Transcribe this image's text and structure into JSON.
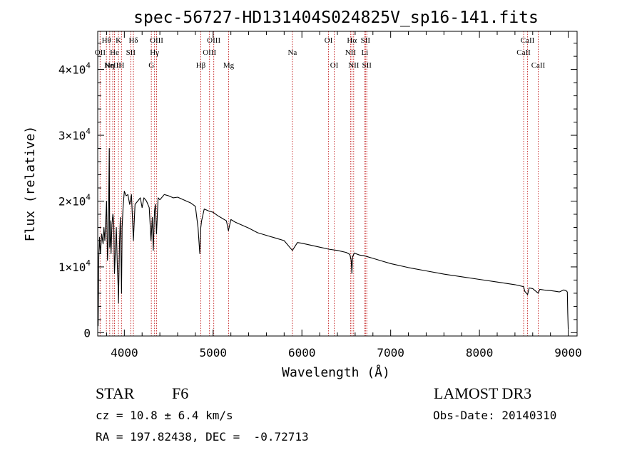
{
  "chart_data": {
    "type": "line",
    "title": "spec-56727-HD131404S024825V_sp16-141.fits",
    "xlabel": "Wavelength (Å)",
    "ylabel": "Flux (relative)",
    "xlim": [
      3700,
      9100
    ],
    "ylim": [
      -500,
      45800
    ],
    "x_ticks": [
      4000,
      5000,
      6000,
      7000,
      8000,
      9000
    ],
    "x_tick_labels": [
      "4000",
      "5000",
      "6000",
      "7000",
      "8000",
      "9000"
    ],
    "y_ticks": [
      0,
      10000,
      20000,
      30000,
      40000
    ],
    "y_tick_labels": [
      {
        "mant": "0",
        "exp": ""
      },
      {
        "mant": "1×10",
        "exp": "4"
      },
      {
        "mant": "2×10",
        "exp": "4"
      },
      {
        "mant": "3×10",
        "exp": "4"
      },
      {
        "mant": "4×10",
        "exp": "4"
      }
    ],
    "line_color": "#000000",
    "marker_color": "#c83232",
    "series": [
      {
        "name": "flux",
        "x": [
          3705,
          3712,
          3720,
          3730,
          3745,
          3760,
          3770,
          3780,
          3790,
          3800,
          3810,
          3820,
          3830,
          3835,
          3840,
          3845,
          3850,
          3860,
          3870,
          3880,
          3889,
          3900,
          3910,
          3920,
          3930,
          3934,
          3945,
          3955,
          3960,
          3968,
          3975,
          3985,
          4000,
          4020,
          4040,
          4060,
          4080,
          4102,
          4120,
          4150,
          4180,
          4200,
          4220,
          4250,
          4280,
          4300,
          4315,
          4326,
          4340,
          4350,
          4362,
          4380,
          4400,
          4450,
          4500,
          4550,
          4600,
          4650,
          4700,
          4750,
          4800,
          4830,
          4850,
          4861,
          4870,
          4900,
          4950,
          5000,
          5050,
          5100,
          5150,
          5172,
          5183,
          5200,
          5250,
          5300,
          5400,
          5500,
          5600,
          5700,
          5800,
          5893,
          5950,
          6000,
          6100,
          6200,
          6300,
          6400,
          6500,
          6540,
          6555,
          6563,
          6570,
          6590,
          6650,
          6700,
          6800,
          6900,
          7000,
          7200,
          7400,
          7600,
          7800,
          8000,
          8200,
          8400,
          8498,
          8510,
          8542,
          8560,
          8600,
          8662,
          8680,
          8750,
          8800,
          8850,
          8900,
          8950,
          8975,
          8990,
          8995,
          9000
        ],
        "values": [
          1000,
          11500,
          14500,
          12000,
          15000,
          13500,
          16000,
          14000,
          17000,
          20000,
          11000,
          15000,
          28000,
          13000,
          17000,
          14500,
          12000,
          16500,
          18000,
          17000,
          9000,
          13000,
          16000,
          10500,
          7000,
          4500,
          13500,
          17500,
          13000,
          6000,
          16000,
          19000,
          21500,
          20800,
          21000,
          19500,
          21000,
          14000,
          19500,
          20000,
          20500,
          19000,
          20500,
          20000,
          19000,
          14000,
          17500,
          12500,
          18500,
          19500,
          15000,
          20500,
          20200,
          21000,
          20800,
          20500,
          20600,
          20300,
          20000,
          19700,
          19200,
          16000,
          12000,
          16000,
          17000,
          18800,
          18500,
          18300,
          17800,
          17400,
          17000,
          15500,
          16200,
          17200,
          16800,
          16500,
          15900,
          15200,
          14800,
          14400,
          14000,
          12500,
          13700,
          13600,
          13300,
          13000,
          12700,
          12500,
          12200,
          11900,
          11000,
          9000,
          11500,
          12100,
          11800,
          11700,
          11300,
          10900,
          10500,
          9900,
          9400,
          8900,
          8500,
          8100,
          7700,
          7300,
          7000,
          6300,
          5800,
          6800,
          6700,
          6000,
          6600,
          6450,
          6400,
          6300,
          6200,
          6500,
          6400,
          6200,
          3000,
          500
        ]
      }
    ],
    "line_markers": [
      {
        "wl": 3727,
        "label": "OII",
        "row": 1
      },
      {
        "wl": 3798,
        "label": "Hθ",
        "row": 0
      },
      {
        "wl": 3835,
        "label": "Hη",
        "row": 2
      },
      {
        "wl": 3869,
        "label": "NeIII",
        "row": 2
      },
      {
        "wl": 3889,
        "label": "He",
        "row": 1
      },
      {
        "wl": 3934,
        "label": "K",
        "row": 0
      },
      {
        "wl": 3968,
        "label": "H",
        "row": 2
      },
      {
        "wl": 4072,
        "label": "SII",
        "row": 1
      },
      {
        "wl": 4102,
        "label": "Hδ",
        "row": 0
      },
      {
        "wl": 4304,
        "label": "G",
        "row": 2
      },
      {
        "wl": 4340,
        "label": "Hγ",
        "row": 1
      },
      {
        "wl": 4363,
        "label": "OIII",
        "row": 0
      },
      {
        "wl": 4861,
        "label": "Hβ",
        "row": 2
      },
      {
        "wl": 4959,
        "label": "OIII",
        "row": 1
      },
      {
        "wl": 5007,
        "label": "OIII",
        "row": 0
      },
      {
        "wl": 5175,
        "label": "Mg",
        "row": 2
      },
      {
        "wl": 5893,
        "label": "Na",
        "row": 1
      },
      {
        "wl": 6300,
        "label": "OI",
        "row": 0
      },
      {
        "wl": 6364,
        "label": "OI",
        "row": 2
      },
      {
        "wl": 6548,
        "label": "NII",
        "row": 1
      },
      {
        "wl": 6563,
        "label": "Hα",
        "row": 0
      },
      {
        "wl": 6583,
        "label": "NII",
        "row": 2
      },
      {
        "wl": 6708,
        "label": "Li",
        "row": 1
      },
      {
        "wl": 6716,
        "label": "SII",
        "row": 0
      },
      {
        "wl": 6731,
        "label": "SII",
        "row": 2
      },
      {
        "wl": 8498,
        "label": "CaII",
        "row": 1
      },
      {
        "wl": 8542,
        "label": "CaII",
        "row": 0
      },
      {
        "wl": 8662,
        "label": "CaII",
        "row": 2
      }
    ]
  },
  "footer": {
    "object_class": "STAR",
    "subclass": "F6",
    "redshift": "cz = 10.8 ± 6.4 km/s",
    "coords": "RA = 197.82438, DEC =  -0.72713",
    "survey": "LAMOST DR3",
    "obs_date": "Obs-Date: 20140310"
  }
}
